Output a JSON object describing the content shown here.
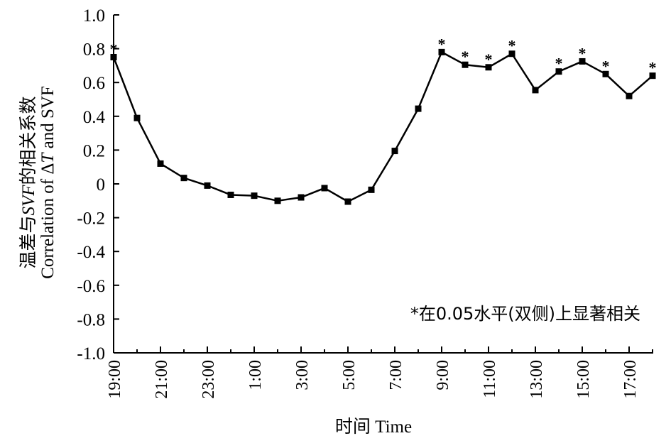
{
  "chart_data": {
    "type": "line",
    "x": [
      "19:00",
      "20:00",
      "21:00",
      "22:00",
      "23:00",
      "0:00",
      "1:00",
      "2:00",
      "3:00",
      "4:00",
      "5:00",
      "6:00",
      "7:00",
      "8:00",
      "9:00",
      "10:00",
      "11:00",
      "12:00",
      "13:00",
      "14:00",
      "15:00",
      "16:00",
      "17:00",
      "18:00"
    ],
    "xtick_labels": [
      "19:00",
      "21:00",
      "23:00",
      "1:00",
      "3:00",
      "5:00",
      "7:00",
      "9:00",
      "11:00",
      "13:00",
      "15:00",
      "17:00"
    ],
    "series": [
      {
        "values": [
          0.75,
          0.39,
          0.12,
          0.035,
          -0.01,
          -0.065,
          -0.07,
          -0.1,
          -0.08,
          -0.025,
          -0.105,
          -0.035,
          0.195,
          0.445,
          0.78,
          0.705,
          0.69,
          0.77,
          0.555,
          0.665,
          0.725,
          0.65,
          0.52,
          0.64
        ],
        "significant": [
          true,
          false,
          false,
          false,
          false,
          false,
          false,
          false,
          false,
          false,
          false,
          false,
          false,
          false,
          true,
          true,
          true,
          true,
          false,
          true,
          true,
          true,
          false,
          true
        ]
      }
    ],
    "ylim": [
      -1.0,
      1.0
    ],
    "yticks": [
      1.0,
      0.8,
      0.6,
      0.4,
      0.2,
      0,
      -0.2,
      -0.4,
      -0.6,
      -0.8,
      -1.0
    ],
    "ytick_labels": [
      "1.0",
      "0.8",
      "0.6",
      "0.4",
      "0.2",
      "0",
      "-0.2",
      "-0.4",
      "-0.6",
      "-0.8",
      "-1.0"
    ],
    "xlabel": "时间 Time",
    "ylabel_line1_prefix": "温差与",
    "ylabel_line1_italic": "SVF",
    "ylabel_line1_suffix": "的相关系数",
    "ylabel_line2_prefix": "Correlation of Δ",
    "ylabel_line2_italic": "T",
    "ylabel_line2_suffix": " and SVF",
    "significance_marker": "*",
    "annotation": "*在0.05水平(双侧)上显著相关",
    "grid": false,
    "line_color": "#000000",
    "marker": "square"
  }
}
